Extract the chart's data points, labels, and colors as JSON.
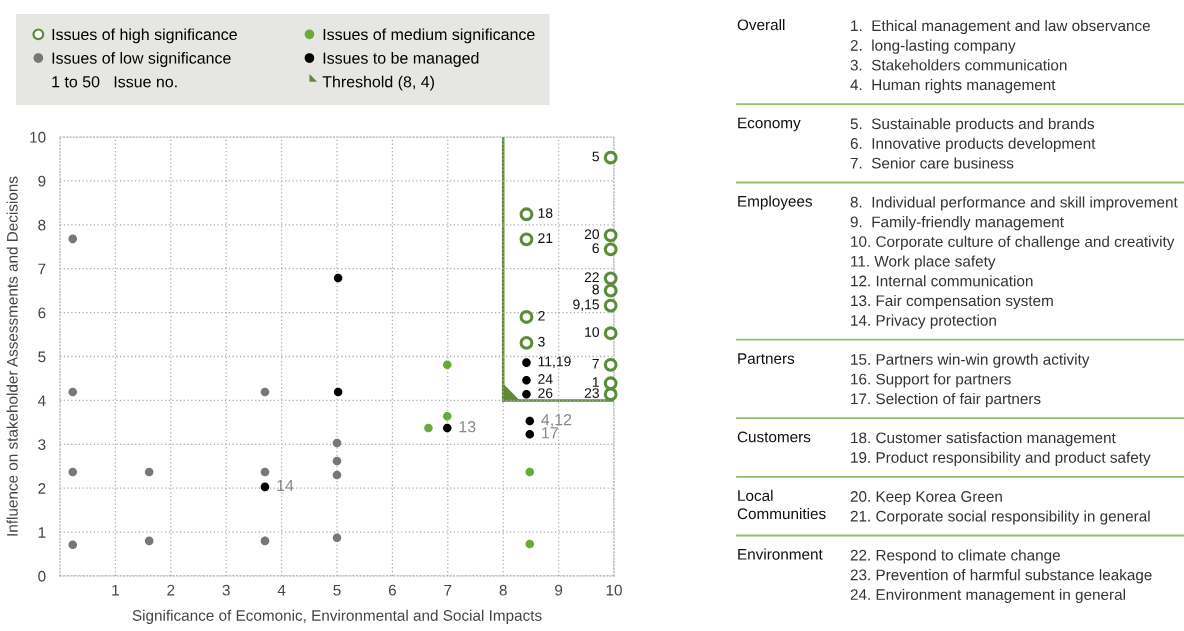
{
  "chart_data": [
    {
      "type": "scatter",
      "xlabel": "Significance of Ecomonic, Environmental and Social Impacts",
      "ylabel": "Influence on stakeholder Assessments and Decisions",
      "xlim": [
        0,
        10
      ],
      "ylim": [
        0,
        10
      ],
      "xticks": [
        1,
        2,
        3,
        4,
        5,
        6,
        7,
        8,
        9,
        10
      ],
      "yticks": [
        0,
        1,
        2,
        3,
        4,
        5,
        6,
        7,
        8,
        9,
        10
      ],
      "grid": true,
      "legend": "top left",
      "marker": "circle",
      "series": [
        {
          "name": "Issues of high significance",
          "color": "#5b8c3a",
          "x": [
            9.94,
            8.42,
            8.42,
            9.94,
            9.94,
            9.94,
            9.94,
            9.94,
            8.42,
            9.94,
            8.42,
            9.94,
            9.94,
            9.94
          ],
          "values": [
            9.53,
            8.24,
            7.67,
            7.76,
            7.44,
            6.78,
            6.5,
            6.16,
            5.9,
            5.53,
            5.31,
            4.81,
            4.39,
            4.14
          ]
        },
        {
          "name": "Issues of medium significance",
          "color": "#6aaa3c",
          "x": [
            6.99,
            6.99,
            6.65,
            8.48,
            8.48
          ],
          "values": [
            4.81,
            3.64,
            3.37,
            2.37,
            0.73
          ]
        },
        {
          "name": "Issues of low significance",
          "color": "#777777",
          "x": [
            0.23,
            0.23,
            0.23,
            0.23,
            1.61,
            1.61,
            3.7,
            3.7,
            3.7,
            5.0,
            5.0,
            5.0,
            5.0
          ],
          "values": [
            7.68,
            4.19,
            2.37,
            0.71,
            2.37,
            0.8,
            4.19,
            2.37,
            0.8,
            3.03,
            2.62,
            2.3,
            0.87
          ]
        },
        {
          "name": "Issues to be managed",
          "color": "#000000",
          "x": [
            5.02,
            5.02,
            6.99,
            3.7,
            8.48,
            8.48,
            8.42,
            8.42,
            8.42
          ],
          "values": [
            6.79,
            4.19,
            3.37,
            2.03,
            3.53,
            3.23,
            4.86,
            4.46,
            4.14
          ]
        }
      ],
      "ref_lines": [
        {
          "axis": "x",
          "value": 8,
          "color": "#5e8a34"
        },
        {
          "axis": "y",
          "value": 4,
          "label": "Threshold (8, 4)",
          "color": "#5e8a34"
        }
      ],
      "annotations": [
        {
          "text": "13",
          "x": 6.99,
          "y": 3.37
        },
        {
          "text": "14",
          "x": 3.7,
          "y": 2.03
        },
        {
          "text": "4,12",
          "x": 8.48,
          "y": 3.53
        },
        {
          "text": "17",
          "x": 8.48,
          "y": 3.23
        },
        {
          "text": "5",
          "x": 9.94,
          "y": 9.53
        },
        {
          "text": "18",
          "x": 8.42,
          "y": 8.24
        },
        {
          "text": "21",
          "x": 8.42,
          "y": 7.67
        },
        {
          "text": "20",
          "x": 9.94,
          "y": 7.76
        },
        {
          "text": "6",
          "x": 9.94,
          "y": 7.44
        },
        {
          "text": "22",
          "x": 9.94,
          "y": 6.78
        },
        {
          "text": "8",
          "x": 9.94,
          "y": 6.5
        },
        {
          "text": "9,15",
          "x": 9.94,
          "y": 6.16
        },
        {
          "text": "2",
          "x": 8.42,
          "y": 5.9
        },
        {
          "text": "10",
          "x": 9.94,
          "y": 5.53
        },
        {
          "text": "3",
          "x": 8.42,
          "y": 5.31
        },
        {
          "text": "11,19",
          "x": 8.42,
          "y": 4.86
        },
        {
          "text": "7",
          "x": 9.94,
          "y": 4.81
        },
        {
          "text": "24",
          "x": 8.42,
          "y": 4.46
        },
        {
          "text": "1",
          "x": 9.94,
          "y": 4.39
        },
        {
          "text": "26",
          "x": 8.42,
          "y": 4.14
        },
        {
          "text": "23",
          "x": 9.94,
          "y": 4.14
        },
        "1 to 50   Issue no."
      ]
    },
    {
      "type": "other",
      "categories": [
        "Overall",
        "Economy",
        "Employees",
        "Partners",
        "Customers",
        "Local Communities",
        "Environment"
      ],
      "cell_labels": [
        [
          "1.  Ethical management and law observance",
          "2.  long-lasting company",
          "3.  Stakeholders communication",
          "4.  Human rights management"
        ],
        [
          "5.  Sustainable products and brands",
          "6.  Innovative products development",
          "7.  Senior care business"
        ],
        [
          "8.  Individual performance and skill improvement",
          "9.  Family-friendly management",
          "10. Corporate culture of challenge and creativity",
          "11. Work place safety",
          "12. Internal communication",
          "13. Fair compensation system",
          "14. Privacy protection"
        ],
        [
          "15. Partners win-win growth activity",
          "16. Support for partners",
          "17. Selection of fair partners"
        ],
        [
          "18. Customer satisfaction management",
          "19. Product responsibility and product safety"
        ],
        [
          "20. Keep Korea Green",
          "21. Corporate social responsibility in general"
        ],
        [
          "22. Respond to climate change",
          "23. Prevention of harmful substance leakage",
          "24. Environment management in general"
        ]
      ]
    }
  ]
}
